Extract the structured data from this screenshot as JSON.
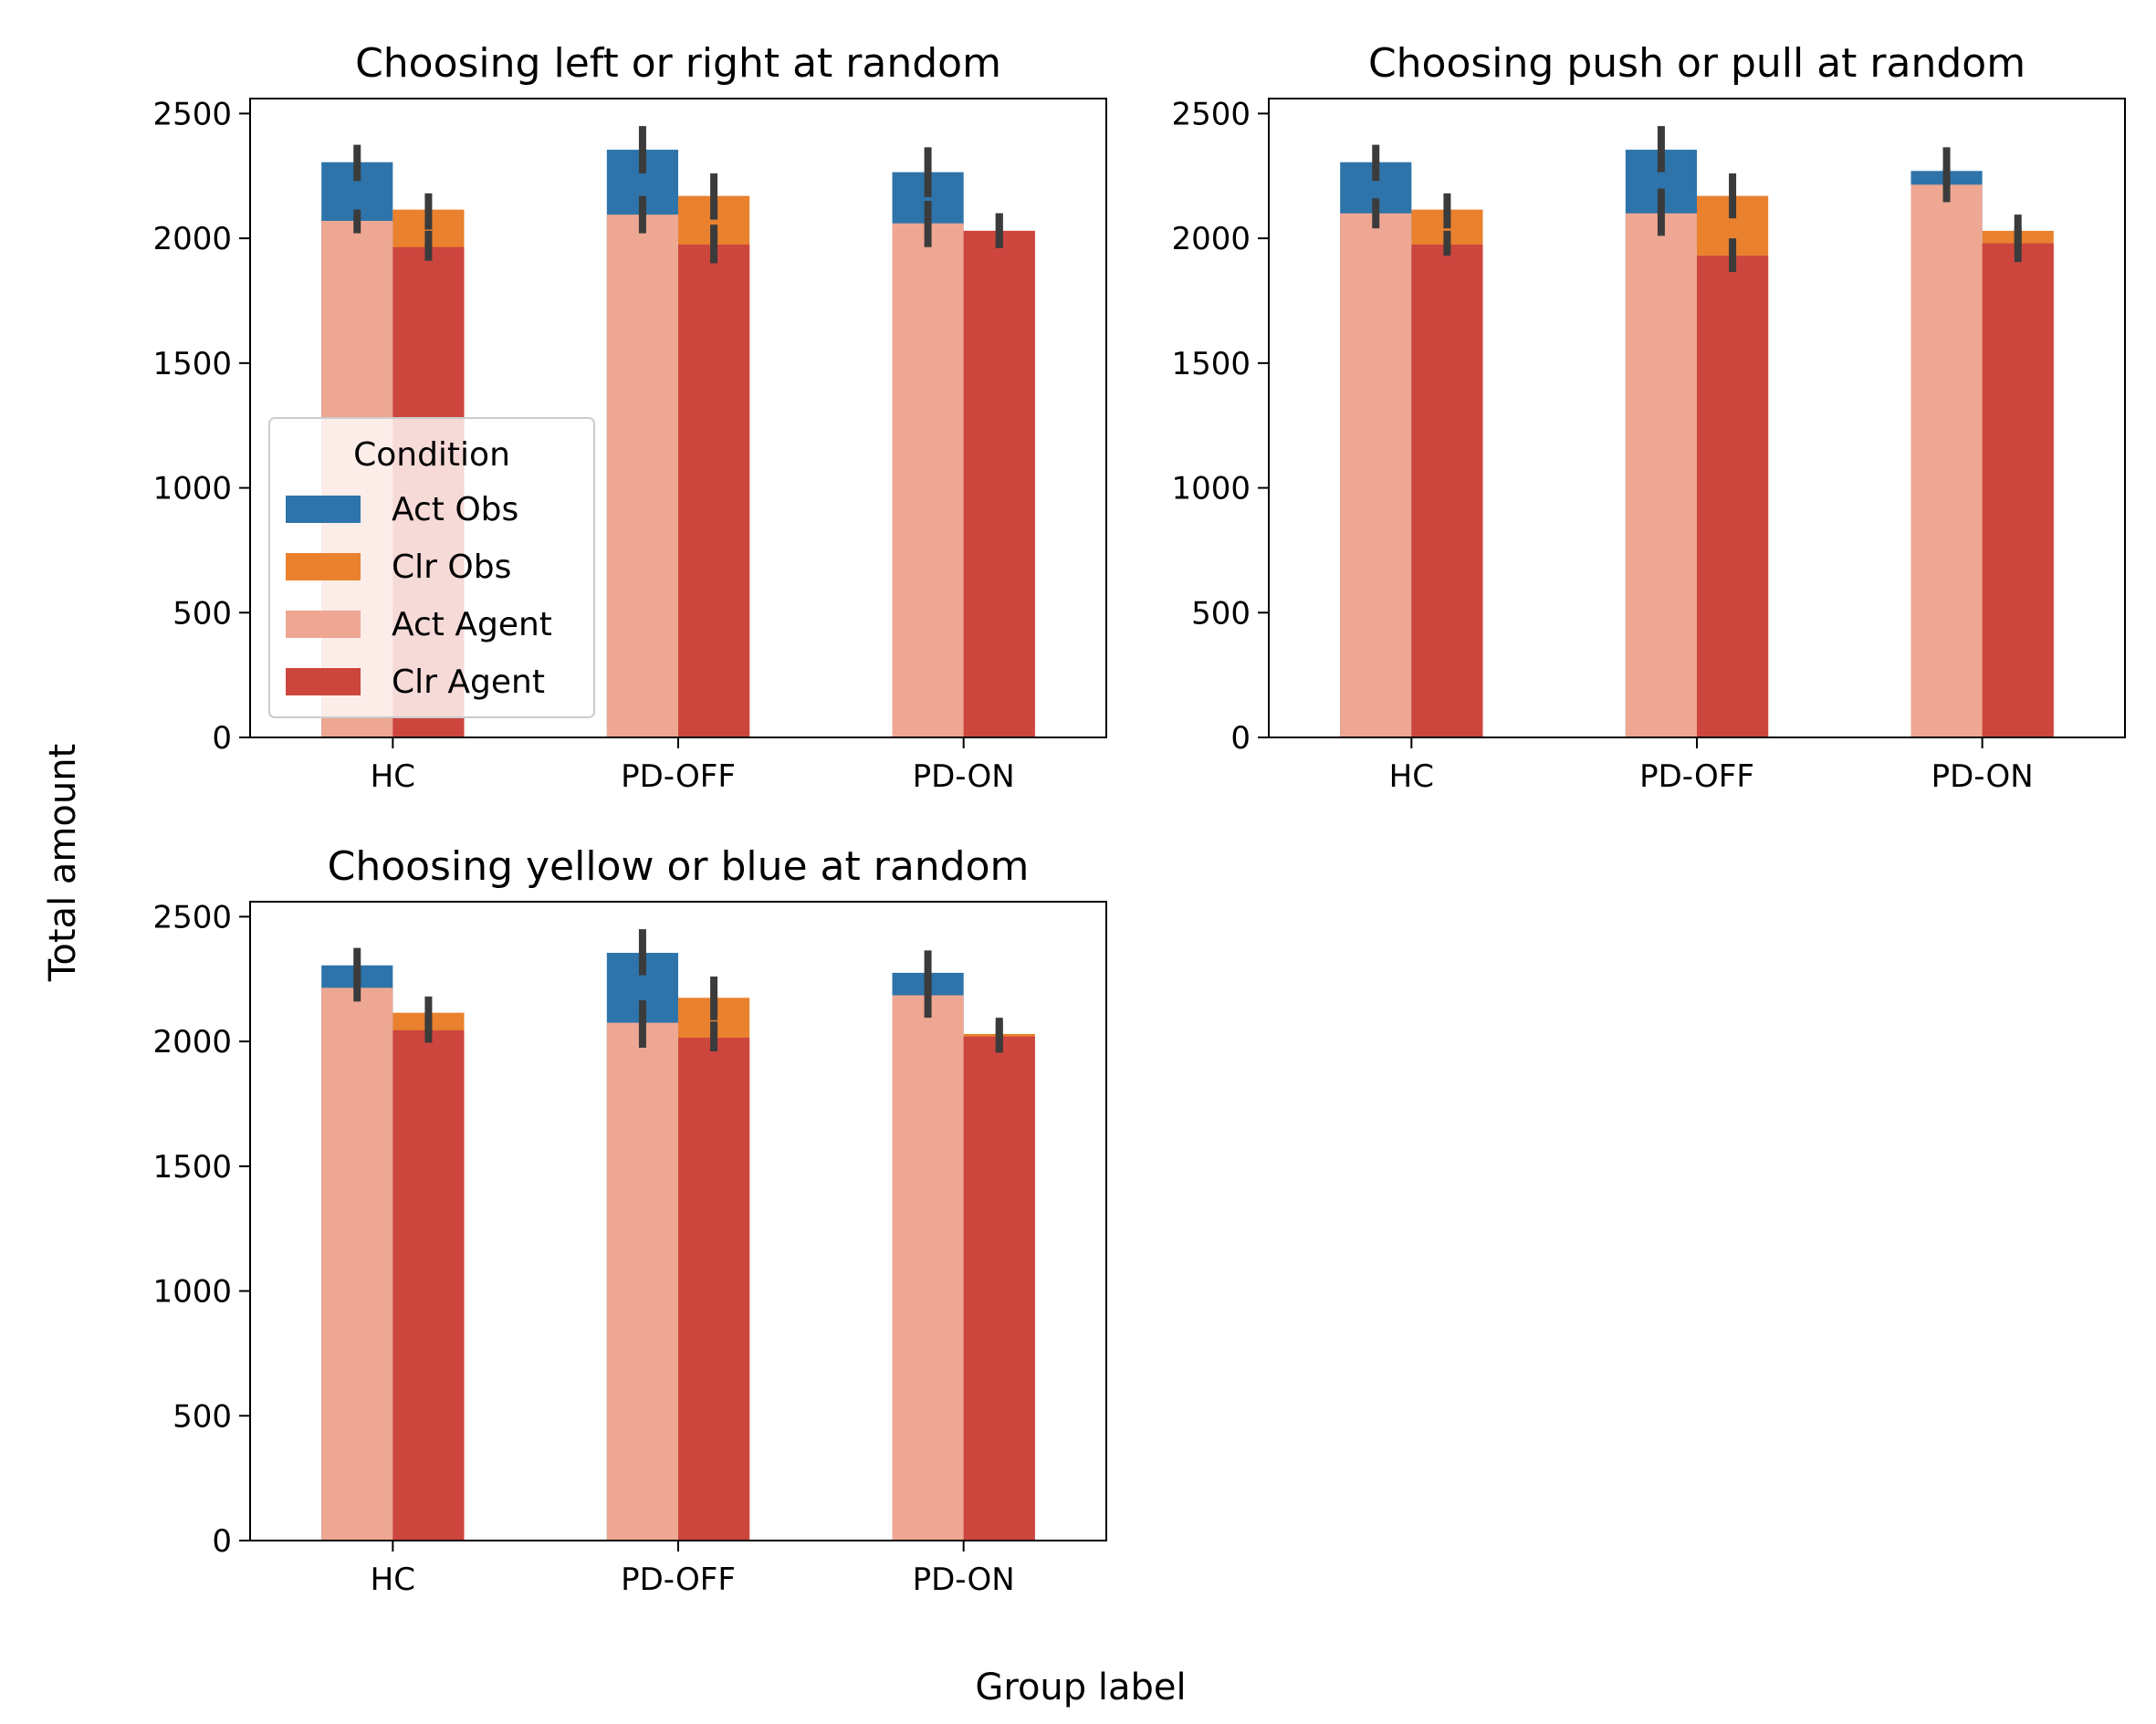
{
  "figure": {
    "xlabel": "Group label",
    "ylabel": "Total amount"
  },
  "colors": {
    "Act Obs": "#2e74aa",
    "Clr Obs": "#e9812e",
    "Act Agent": "#eea793",
    "Clr Agent": "#cd463e",
    "errorbar": "#3b3b3b"
  },
  "legend": {
    "title": "Condition",
    "placement": "center-left",
    "entries": [
      "Act Obs",
      "Clr Obs",
      "Act Agent",
      "Clr Agent"
    ]
  },
  "chart_data": [
    {
      "type": "bar",
      "title": "Choosing left or right at random",
      "categories": [
        "HC",
        "PD-OFF",
        "PD-ON"
      ],
      "ylim": [
        0,
        2560
      ],
      "yticks": [
        0,
        500,
        1000,
        1500,
        2000,
        2500
      ],
      "series": [
        {
          "name": "Act Obs",
          "values": [
            2305,
            2355,
            2265
          ],
          "err": [
            [
              2230,
              2375
            ],
            [
              2260,
              2450
            ],
            [
              2165,
              2365
            ]
          ]
        },
        {
          "name": "Clr Obs",
          "values": [
            2115,
            2170,
            2030
          ],
          "err": [
            [
              2035,
              2180
            ],
            [
              2075,
              2260
            ],
            [
              1960,
              2100
            ]
          ]
        },
        {
          "name": "Act Agent",
          "values": [
            2070,
            2095,
            2060
          ],
          "err": [
            [
              2020,
              2115
            ],
            [
              2020,
              2170
            ],
            [
              1965,
              2150
            ]
          ]
        },
        {
          "name": "Clr Agent",
          "values": [
            1965,
            1975,
            2030
          ],
          "err": [
            [
              1910,
              2030
            ],
            [
              1900,
              2055
            ],
            [
              1960,
              2100
            ]
          ]
        }
      ]
    },
    {
      "type": "bar",
      "title": "Choosing push or pull at random",
      "categories": [
        "HC",
        "PD-OFF",
        "PD-ON"
      ],
      "ylim": [
        0,
        2560
      ],
      "yticks": [
        0,
        500,
        1000,
        1500,
        2000,
        2500
      ],
      "series": [
        {
          "name": "Act Obs",
          "values": [
            2305,
            2355,
            2270
          ],
          "err": [
            [
              2230,
              2375
            ],
            [
              2265,
              2450
            ],
            [
              2210,
              2365
            ]
          ]
        },
        {
          "name": "Clr Obs",
          "values": [
            2115,
            2170,
            2030
          ],
          "err": [
            [
              2040,
              2180
            ],
            [
              2080,
              2260
            ],
            [
              1970,
              2095
            ]
          ]
        },
        {
          "name": "Act Agent",
          "values": [
            2100,
            2100,
            2215
          ],
          "err": [
            [
              2040,
              2160
            ],
            [
              2010,
              2200
            ],
            [
              2145,
              2280
            ]
          ]
        },
        {
          "name": "Clr Agent",
          "values": [
            1975,
            1930,
            1980
          ],
          "err": [
            [
              1930,
              2030
            ],
            [
              1865,
              2000
            ],
            [
              1905,
              2045
            ]
          ]
        }
      ]
    },
    {
      "type": "bar",
      "title": "Choosing yellow or blue at random",
      "categories": [
        "HC",
        "PD-OFF",
        "PD-ON"
      ],
      "ylim": [
        0,
        2560
      ],
      "yticks": [
        0,
        500,
        1000,
        1500,
        2000,
        2500
      ],
      "series": [
        {
          "name": "Act Obs",
          "values": [
            2305,
            2355,
            2275
          ],
          "err": [
            [
              2240,
              2375
            ],
            [
              2265,
              2450
            ],
            [
              2210,
              2365
            ]
          ]
        },
        {
          "name": "Clr Obs",
          "values": [
            2115,
            2175,
            2030
          ],
          "err": [
            [
              2040,
              2180
            ],
            [
              2085,
              2260
            ],
            [
              1960,
              2095
            ]
          ]
        },
        {
          "name": "Act Agent",
          "values": [
            2215,
            2075,
            2185
          ],
          "err": [
            [
              2160,
              2275
            ],
            [
              1975,
              2165
            ],
            [
              2095,
              2275
            ]
          ]
        },
        {
          "name": "Clr Agent",
          "values": [
            2045,
            2015,
            2020
          ],
          "err": [
            [
              1995,
              2095
            ],
            [
              1960,
              2080
            ],
            [
              1955,
              2080
            ]
          ]
        }
      ]
    }
  ]
}
